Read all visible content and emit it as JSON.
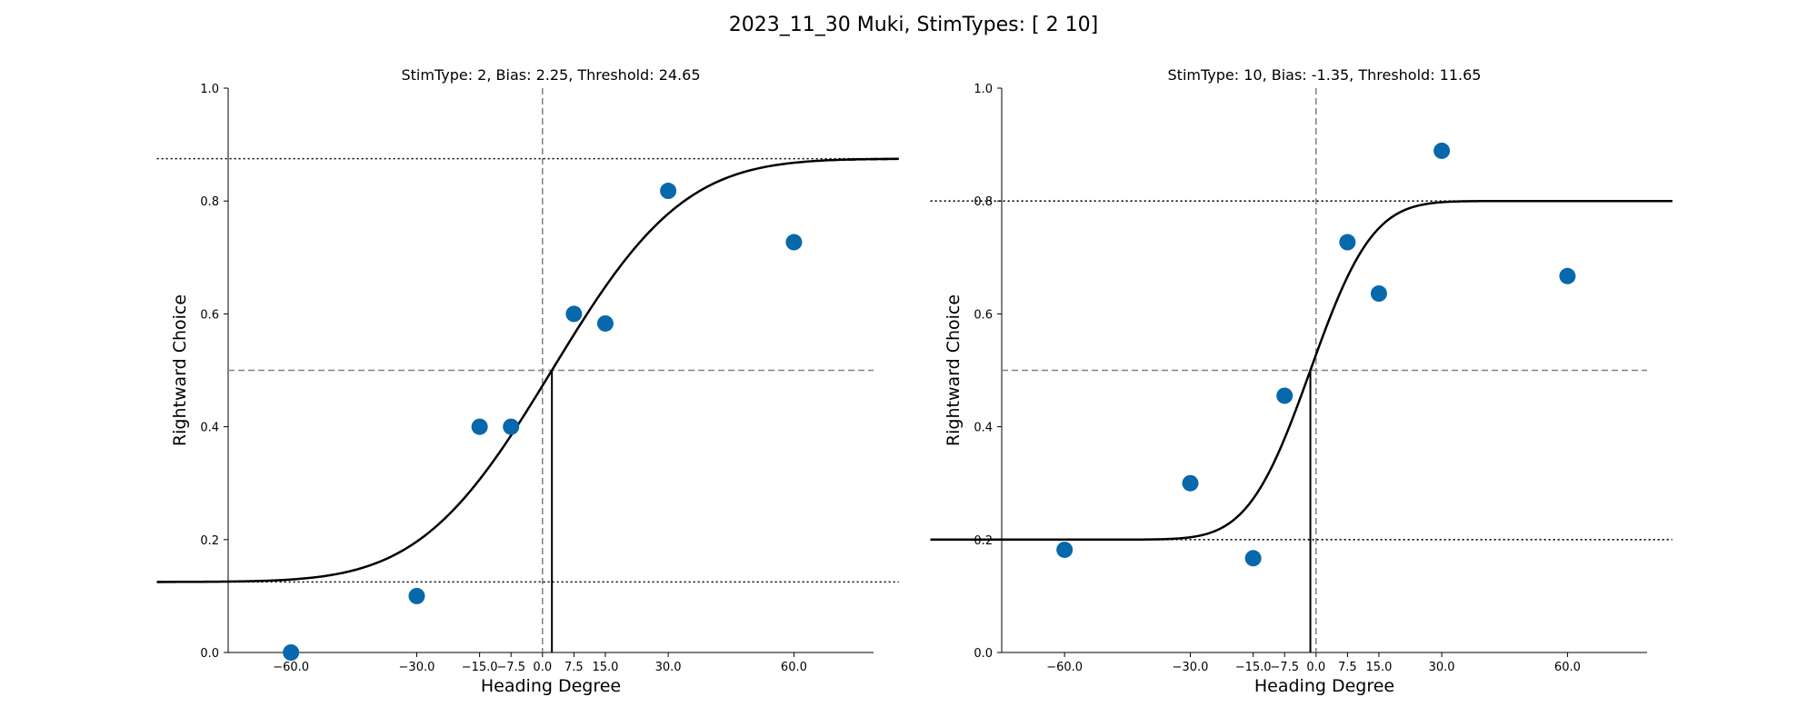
{
  "figure": {
    "suptitle": "2023_11_30 Muki, StimTypes: [ 2 10]"
  },
  "colors": {
    "points": "#0868ac",
    "curve": "#000000",
    "reference": "#808080"
  },
  "chart_data": [
    {
      "type": "scatter",
      "title": "StimType: 2, Bias: 2.25, Threshold: 24.65",
      "xlabel": "Heading Degree",
      "ylabel": "Rightward Choice",
      "xlim": [
        -75,
        79
      ],
      "ylim": [
        0,
        1
      ],
      "xticks": [
        -60,
        -30,
        -15,
        -7.5,
        0,
        7.5,
        15,
        30,
        60
      ],
      "xtick_labels": [
        "−60.0",
        "−30.0",
        "−15.0",
        "−7.5",
        "0.0",
        "7.5",
        "15.0",
        "30.0",
        "60.0"
      ],
      "yticks": [
        0,
        0.2,
        0.4,
        0.6,
        0.8,
        1.0
      ],
      "ytick_labels": [
        "0.0",
        "0.2",
        "0.4",
        "0.6",
        "0.8",
        "1.0"
      ],
      "x": [
        -60,
        -30,
        -15,
        -7.5,
        7.5,
        15,
        30,
        60
      ],
      "y": [
        0.0,
        0.1,
        0.4,
        0.4,
        0.6,
        0.583,
        0.818,
        0.727
      ],
      "fit": {
        "model": "cumulative-gaussian",
        "bias": 2.25,
        "threshold": 24.65,
        "lower_asymptote": 0.125,
        "upper_asymptote": 0.875,
        "x_range": [
          -92,
          85
        ]
      },
      "reference_lines": {
        "vertical_x": 0,
        "horizontal_y": 0.5
      }
    },
    {
      "type": "scatter",
      "title": "StimType: 10, Bias: -1.35, Threshold: 11.65",
      "xlabel": "Heading Degree",
      "ylabel": "Rightward Choice",
      "xlim": [
        -75,
        79
      ],
      "ylim": [
        0,
        1
      ],
      "xticks": [
        -60,
        -30,
        -15,
        -7.5,
        0,
        7.5,
        15,
        30,
        60
      ],
      "xtick_labels": [
        "−60.0",
        "−30.0",
        "−15.0",
        "−7.5",
        "0.0",
        "7.5",
        "15.0",
        "30.0",
        "60.0"
      ],
      "yticks": [
        0,
        0.2,
        0.4,
        0.6,
        0.8,
        1.0
      ],
      "ytick_labels": [
        "0.0",
        "0.2",
        "0.4",
        "0.6",
        "0.8",
        "1.0"
      ],
      "x": [
        -60,
        -30,
        -15,
        -7.5,
        7.5,
        15,
        30,
        60
      ],
      "y": [
        0.182,
        0.3,
        0.167,
        0.455,
        0.727,
        0.636,
        0.889,
        0.667
      ],
      "fit": {
        "model": "cumulative-gaussian",
        "bias": -1.35,
        "threshold": 11.65,
        "lower_asymptote": 0.2,
        "upper_asymptote": 0.8,
        "x_range": [
          -92,
          85
        ]
      },
      "reference_lines": {
        "vertical_x": 0,
        "horizontal_y": 0.5
      }
    }
  ]
}
